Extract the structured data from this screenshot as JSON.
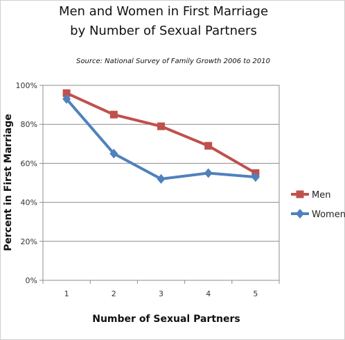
{
  "chart_data": {
    "type": "line",
    "title": "Men and Women in First Marriage",
    "title_line2": "by Number of Sexual Partners",
    "subtitle": "Source: National Survey of Family Growth 2006 to 2010",
    "xlabel": "Number of Sexual Partners",
    "ylabel": "Percent in First Marriage",
    "categories": [
      "1",
      "2",
      "3",
      "4",
      "5"
    ],
    "y_ticks": [
      "0%",
      "20%",
      "40%",
      "60%",
      "80%",
      "100%"
    ],
    "ylim": [
      0,
      100
    ],
    "grid": true,
    "legend_position": "right",
    "series": [
      {
        "name": "Men",
        "values": [
          96,
          85,
          79,
          69,
          55
        ],
        "color": "#c0504d",
        "marker": "square"
      },
      {
        "name": "Women",
        "values": [
          93,
          65,
          52,
          55,
          53
        ],
        "color": "#4f81bd",
        "marker": "diamond"
      }
    ]
  }
}
